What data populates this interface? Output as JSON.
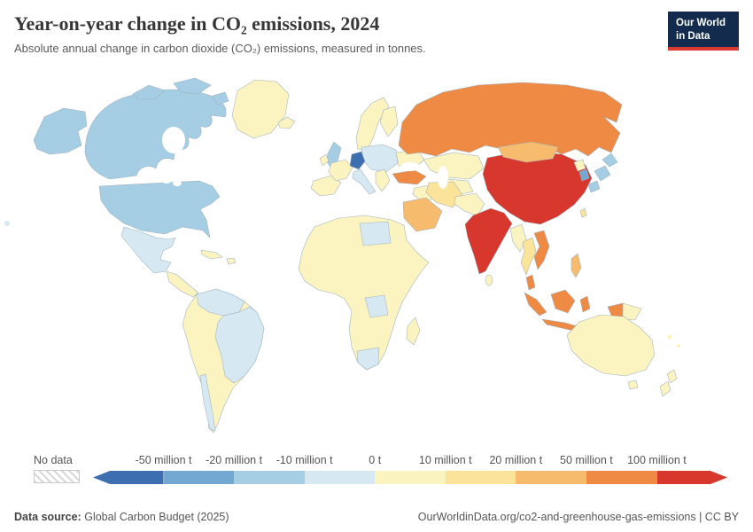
{
  "header": {
    "title": "Year-on-year change in CO₂ emissions, 2024",
    "subtitle": "Absolute annual change in carbon dioxide (CO₂) emissions, measured in tonnes."
  },
  "logo": {
    "line1": "Our World",
    "line2": "in Data",
    "bg": "#132c4e",
    "accent": "#dc3b32"
  },
  "legend": {
    "no_data_label": "No data",
    "boundary_labels": [
      "-50 million t",
      "-20 million t",
      "-10 million t",
      "0 t",
      "10 million t",
      "20 million t",
      "50 million t",
      "100 million t"
    ],
    "segments": [
      "#3d6fb0",
      "#73a8d3",
      "#a5cde3",
      "#d6e9f3",
      "#fbf3c0",
      "#fce39a",
      "#f7bb6e",
      "#ef8a45",
      "#d7372c"
    ]
  },
  "footer": {
    "source_prefix": "Data source:",
    "source": "Global Carbon Budget (2025)",
    "link": "OurWorldinData.org/co2-and-greenhouse-gas-emissions | CC BY"
  },
  "chart_data": {
    "type": "choropleth",
    "title": "Year-on-year change in CO₂ emissions, 2024",
    "unit": "tonnes CO₂",
    "scale_boundaries_t": [
      -50000000,
      -20000000,
      -10000000,
      0,
      10000000,
      20000000,
      50000000,
      100000000
    ],
    "region_bins": {
      "China": "> 100 million t",
      "India": "> 100 million t",
      "Russia": "50 to 100 million t",
      "Turkey": "50 to 100 million t",
      "Indonesia": "50 to 100 million t",
      "Vietnam": "50 to 100 million t",
      "Saudi Arabia": "20 to 50 million t",
      "Mongolia": "20 to 50 million t",
      "Philippines": "20 to 50 million t",
      "Iran": "10 to 20 million t",
      "Thailand": "10 to 20 million t",
      "Greenland": "0 to 10 million t",
      "Australia": "0 to 10 million t",
      "Most of Africa": "0 to 10 million t",
      "Kazakhstan": "0 to 10 million t",
      "Mexico": "-10 to 0 t",
      "Brazil": "-10 to 0 t",
      "Italy": "-10 to 0 t",
      "Libya": "-10 to 0 t",
      "South Africa": "-10 to 0 t",
      "United States": "-20 to -10 million t",
      "Canada": "-20 to -10 million t",
      "United Kingdom": "-20 to -10 million t",
      "Japan": "-20 to -10 million t",
      "South Korea": "-50 to -20 million t",
      "Germany": "≤ -50 million t"
    }
  },
  "map": {
    "region_fills": {
      "usa": "#a5cde3",
      "canada": "#a5cde3",
      "greenland": "#fbf3c0",
      "mexico": "#d6e9f3",
      "central_america": "#fbf3c0",
      "cuba": "#fbf3c0",
      "hispaniola": "#fbf3c0",
      "south_america": "#fbf3c0",
      "colombia_venezuela": "#d6e9f3",
      "brazil": "#d6e9f3",
      "chile": "#d6e9f3",
      "iceland": "#fbf3c0",
      "uk": "#a5cde3",
      "ireland": "#fbf3c0",
      "scandinavia": "#fbf3c0",
      "finland": "#fbf3c0",
      "iberia": "#fbf3c0",
      "france": "#fbf3c0",
      "germany": "#3d6fb0",
      "central_europe": "#d6e9f3",
      "italy": "#d6e9f3",
      "balkans": "#fbf3c0",
      "ukraine": "#fbf3c0",
      "russia": "#ef8a45",
      "kazakhstan": "#fbf3c0",
      "central_asia": "#fbf3c0",
      "turkey": "#ef8a45",
      "iraq": "#fbf3c0",
      "iran": "#fce39a",
      "saudi_arabia": "#f7bb6e",
      "afghanistan_pakistan": "#fbf3c0",
      "india": "#d7372c",
      "sri_lanka": "#fbf3c0",
      "china": "#d7372c",
      "mongolia": "#f7bb6e",
      "north_korea": "#fbf3c0",
      "south_korea": "#73a8d3",
      "japan": "#a5cde3",
      "taiwan": "#fce39a",
      "myanmar": "#fbf3c0",
      "thailand": "#fce39a",
      "vietnam": "#ef8a45",
      "malaysia": "#ef8a45",
      "indonesia": "#ef8a45",
      "png": "#fbf3c0",
      "philippines": "#f7bb6e",
      "australia": "#fbf3c0",
      "new_zealand": "#fbf3c0",
      "africa": "#fbf3c0",
      "libya": "#d6e9f3",
      "drc": "#d6e9f3",
      "south_africa": "#d6e9f3",
      "madagascar": "#fbf3c0",
      "pacific_island": "#d6e9f3",
      "melanesia": "#fbf3c0"
    }
  }
}
